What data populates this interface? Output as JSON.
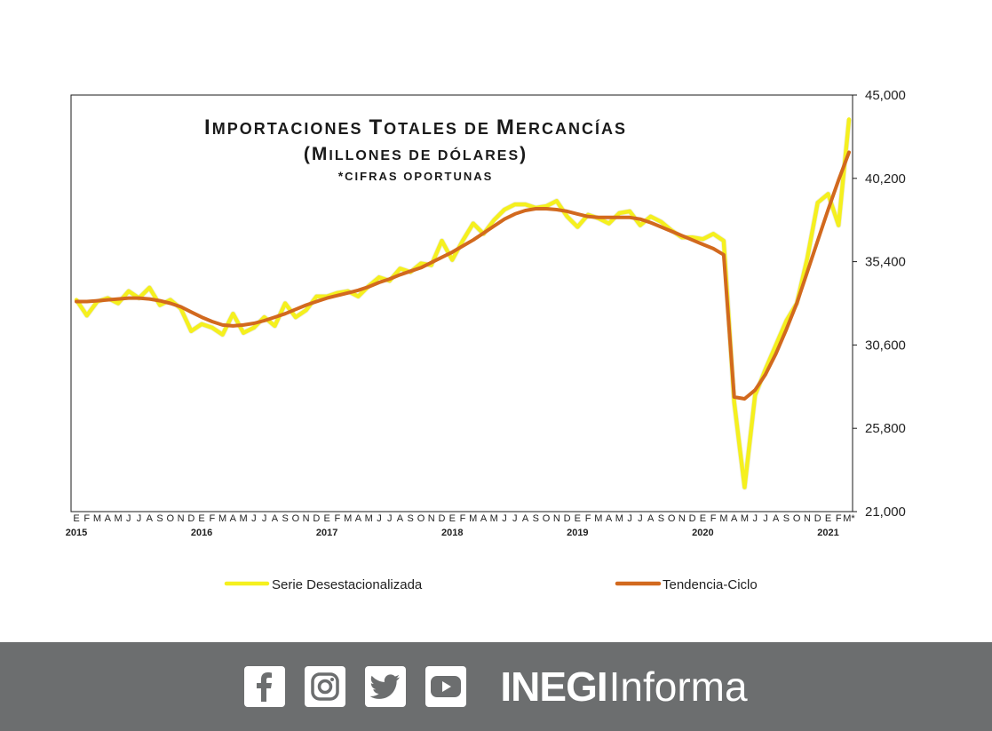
{
  "chart_data": {
    "type": "line",
    "title_lines": [
      "Importaciones Totales de Mercancías",
      "(Millones de dólares)",
      "*cifras oportunas"
    ],
    "ylim": [
      21000,
      45000
    ],
    "y_ticks": [
      "45,000",
      "40,200",
      "35,400",
      "30,600",
      "25,800",
      "21,000"
    ],
    "y_tick_values": [
      45000,
      40200,
      35400,
      30600,
      25800,
      21000
    ],
    "y_axis_side": "right",
    "grid": false,
    "month_labels": [
      "E",
      "F",
      "M",
      "A",
      "M",
      "J",
      "J",
      "A",
      "S",
      "O",
      "N",
      "D",
      "E",
      "F",
      "M",
      "A",
      "M",
      "J",
      "J",
      "A",
      "S",
      "O",
      "N",
      "D",
      "E",
      "F",
      "M",
      "A",
      "M",
      "J",
      "J",
      "A",
      "S",
      "O",
      "N",
      "D",
      "E",
      "F",
      "M",
      "A",
      "M",
      "J",
      "J",
      "A",
      "S",
      "O",
      "N",
      "D",
      "E",
      "F",
      "M",
      "A",
      "M",
      "J",
      "J",
      "A",
      "S",
      "O",
      "N",
      "D",
      "E",
      "F",
      "M",
      "A",
      "M",
      "J",
      "J",
      "A",
      "S",
      "O",
      "N",
      "D",
      "E",
      "F",
      "M*"
    ],
    "year_labels": [
      {
        "label": "2015",
        "index": 0
      },
      {
        "label": "2016",
        "index": 12
      },
      {
        "label": "2017",
        "index": 24
      },
      {
        "label": "2018",
        "index": 36
      },
      {
        "label": "2019",
        "index": 48
      },
      {
        "label": "2020",
        "index": 60
      },
      {
        "label": "2021",
        "index": 72
      }
    ],
    "series": [
      {
        "name": "Serie Desestacionalizada",
        "color": "#f5f01e",
        "values": [
          33200,
          32300,
          33100,
          33300,
          33000,
          33700,
          33300,
          33900,
          32900,
          33200,
          32700,
          31400,
          31800,
          31600,
          31200,
          32400,
          31300,
          31600,
          32200,
          31700,
          33000,
          32200,
          32600,
          33400,
          33400,
          33600,
          33700,
          33400,
          34000,
          34500,
          34300,
          35000,
          34800,
          35300,
          35200,
          36600,
          35500,
          36600,
          37600,
          37000,
          37800,
          38400,
          38700,
          38700,
          38500,
          38600,
          38900,
          38000,
          37400,
          38100,
          37900,
          37600,
          38200,
          38300,
          37500,
          38000,
          37700,
          37200,
          36800,
          36800,
          36700,
          37000,
          36600,
          27300,
          22400,
          27700,
          29200,
          30600,
          32000,
          33000,
          35600,
          38800,
          39300,
          37500,
          43600
        ],
        "last_label": "M*"
      },
      {
        "name": "Tendencia-Ciclo",
        "color": "#d2691e",
        "values": [
          33100,
          33100,
          33150,
          33200,
          33250,
          33300,
          33300,
          33250,
          33150,
          33000,
          32800,
          32500,
          32200,
          31950,
          31750,
          31700,
          31750,
          31850,
          32000,
          32200,
          32400,
          32650,
          32900,
          33100,
          33300,
          33450,
          33600,
          33750,
          33950,
          34200,
          34400,
          34650,
          34850,
          35050,
          35350,
          35650,
          35950,
          36300,
          36650,
          37050,
          37450,
          37850,
          38150,
          38350,
          38450,
          38450,
          38400,
          38300,
          38150,
          38000,
          37950,
          37950,
          37950,
          37950,
          37850,
          37650,
          37400,
          37150,
          36900,
          36650,
          36400,
          36150,
          35800,
          27600,
          27500,
          28000,
          28900,
          30100,
          31500,
          33000,
          34800,
          36600,
          38400,
          40100,
          41700
        ]
      }
    ],
    "legend": {
      "placement": "bottom",
      "items": [
        {
          "label": "Serie Desestacionalizada",
          "color": "#f5f01e"
        },
        {
          "label": "Tendencia-Ciclo",
          "color": "#d2691e"
        }
      ]
    }
  },
  "footer": {
    "background": "#6c6e6f",
    "icons": [
      "facebook-icon",
      "instagram-icon",
      "twitter-icon",
      "youtube-icon"
    ],
    "brand_bold": "INEGI",
    "brand_light": "Informa"
  }
}
